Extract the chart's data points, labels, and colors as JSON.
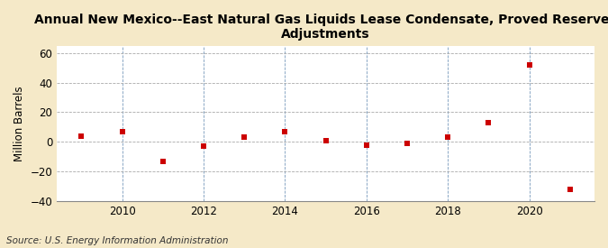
{
  "title": "Annual New Mexico--East Natural Gas Liquids Lease Condensate, Proved Reserves\nAdjustments",
  "ylabel": "Million Barrels",
  "source": "Source: U.S. Energy Information Administration",
  "years": [
    2009,
    2010,
    2011,
    2012,
    2013,
    2014,
    2015,
    2016,
    2017,
    2018,
    2019,
    2020,
    2021
  ],
  "values": [
    4,
    7,
    -13,
    -3,
    3,
    7,
    0.5,
    -2,
    -1,
    3,
    13,
    52,
    -32
  ],
  "xlim": [
    2008.4,
    2021.6
  ],
  "ylim": [
    -40,
    65
  ],
  "yticks": [
    -40,
    -20,
    0,
    20,
    40,
    60
  ],
  "xticks": [
    2010,
    2012,
    2014,
    2016,
    2018,
    2020
  ],
  "marker_color": "#cc0000",
  "marker_size": 5,
  "figure_bg_color": "#f5e9c8",
  "plot_bg_color": "#ffffff",
  "grid_color_h": "#aaaaaa",
  "grid_color_v": "#7799bb",
  "title_fontsize": 10,
  "axis_fontsize": 8.5,
  "source_fontsize": 7.5
}
